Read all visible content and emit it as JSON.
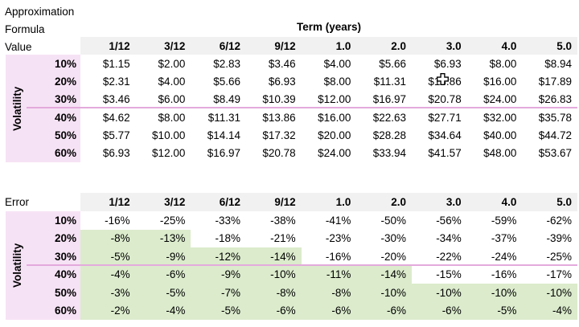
{
  "colors": {
    "header_band": "#f1f1f1",
    "volatility_band": "#f6e2f5",
    "highlight_green": "#dbebcc",
    "divider_line_pink": "#e3aadc",
    "text": "#000000"
  },
  "value_table": {
    "corner_lines": [
      "Approximation",
      "Formula",
      "Value"
    ],
    "term_axis_title": "Term (years)",
    "row_axis_title": "Volatility",
    "column_headers": [
      "1/12",
      "3/12",
      "6/12",
      "9/12",
      "1.0",
      "2.0",
      "3.0",
      "4.0",
      "5.0"
    ],
    "rows": [
      {
        "label": "10%",
        "values": [
          "$1.15",
          "$2.00",
          "$2.83",
          "$3.46",
          "$4.00",
          "$5.66",
          "$6.93",
          "$8.00",
          "$8.94"
        ]
      },
      {
        "label": "20%",
        "values": [
          "$2.31",
          "$4.00",
          "$5.66",
          "$6.93",
          "$8.00",
          "$11.31",
          "$13.86",
          "$16.00",
          "$17.89"
        ]
      },
      {
        "label": "30%",
        "values": [
          "$3.46",
          "$6.00",
          "$8.49",
          "$10.39",
          "$12.00",
          "$16.97",
          "$20.78",
          "$24.00",
          "$26.83"
        ]
      },
      {
        "label": "40%",
        "values": [
          "$4.62",
          "$8.00",
          "$11.31",
          "$13.86",
          "$16.00",
          "$22.63",
          "$27.71",
          "$32.00",
          "$35.78"
        ]
      },
      {
        "label": "50%",
        "values": [
          "$5.77",
          "$10.00",
          "$14.14",
          "$17.32",
          "$20.00",
          "$28.28",
          "$34.64",
          "$40.00",
          "$44.72"
        ]
      },
      {
        "label": "60%",
        "values": [
          "$6.93",
          "$12.00",
          "$16.97",
          "$20.78",
          "$24.00",
          "$33.94",
          "$41.57",
          "$48.00",
          "$53.67"
        ]
      }
    ]
  },
  "error_table": {
    "corner_label": "Error",
    "row_axis_title": "Volatility",
    "column_headers": [
      "1/12",
      "3/12",
      "6/12",
      "9/12",
      "1.0",
      "2.0",
      "3.0",
      "4.0",
      "5.0"
    ],
    "rows": [
      {
        "label": "10%",
        "values": [
          "-16%",
          "-25%",
          "-33%",
          "-38%",
          "-41%",
          "-50%",
          "-56%",
          "-59%",
          "-62%"
        ],
        "highlighted": [
          false,
          false,
          false,
          false,
          false,
          false,
          false,
          false,
          false
        ]
      },
      {
        "label": "20%",
        "values": [
          "-8%",
          "-13%",
          "-18%",
          "-21%",
          "-23%",
          "-30%",
          "-34%",
          "-37%",
          "-39%"
        ],
        "highlighted": [
          true,
          true,
          false,
          false,
          false,
          false,
          false,
          false,
          false
        ]
      },
      {
        "label": "30%",
        "values": [
          "-5%",
          "-9%",
          "-12%",
          "-14%",
          "-16%",
          "-20%",
          "-22%",
          "-24%",
          "-25%"
        ],
        "highlighted": [
          true,
          true,
          true,
          true,
          false,
          false,
          false,
          false,
          false
        ]
      },
      {
        "label": "40%",
        "values": [
          "-4%",
          "-6%",
          "-9%",
          "-10%",
          "-11%",
          "-14%",
          "-15%",
          "-16%",
          "-17%"
        ],
        "highlighted": [
          true,
          true,
          true,
          true,
          true,
          true,
          false,
          false,
          false
        ]
      },
      {
        "label": "50%",
        "values": [
          "-3%",
          "-5%",
          "-7%",
          "-8%",
          "-8%",
          "-10%",
          "-10%",
          "-10%",
          "-10%"
        ],
        "highlighted": [
          true,
          true,
          true,
          true,
          true,
          true,
          true,
          true,
          true
        ]
      },
      {
        "label": "60%",
        "values": [
          "-2%",
          "-4%",
          "-5%",
          "-6%",
          "-6%",
          "-6%",
          "-6%",
          "-5%",
          "-4%"
        ],
        "highlighted": [
          true,
          true,
          true,
          true,
          true,
          true,
          true,
          true,
          true
        ]
      }
    ]
  },
  "cursor": {
    "icon": "cell-cursor",
    "over_value": "$13.86"
  }
}
